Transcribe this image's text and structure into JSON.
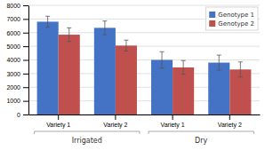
{
  "chart_data": {
    "type": "bar",
    "categories": [
      "Variety 1",
      "Variety 2",
      "Variety 1",
      "Variety 2"
    ],
    "groups": [
      "Irrigated",
      "Dry"
    ],
    "series": [
      {
        "name": "Genotype 1",
        "color": "#4472C4",
        "values": [
          6800,
          6350,
          4000,
          3800
        ],
        "errors": [
          400,
          500,
          600,
          550
        ]
      },
      {
        "name": "Genotype 2",
        "color": "#C0504D",
        "values": [
          5850,
          5050,
          3450,
          3300
        ],
        "errors": [
          500,
          400,
          500,
          550
        ]
      }
    ],
    "ylim": [
      0,
      8000
    ],
    "yticks": [
      0,
      1000,
      2000,
      3000,
      4000,
      5000,
      6000,
      7000,
      8000
    ],
    "grid": true,
    "legend": "upper right"
  }
}
